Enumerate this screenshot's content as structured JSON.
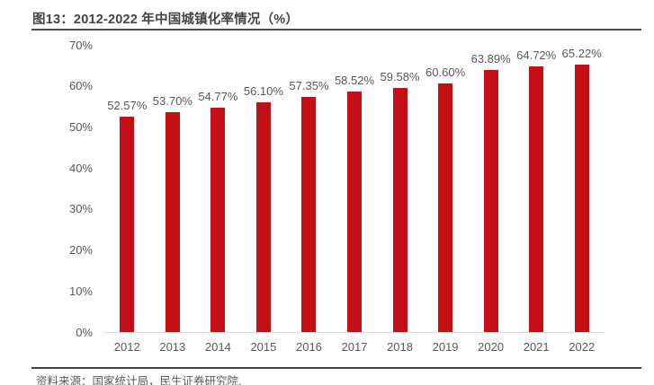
{
  "figure": {
    "title": "图13：2012-2022 年中国城镇化率情况（%）",
    "source": "资料来源：国家统计局，民生证券研究院."
  },
  "chart_data": {
    "type": "bar",
    "title": "图13：2012-2022 年中国城镇化率情况（%）",
    "categories": [
      "2012",
      "2013",
      "2014",
      "2015",
      "2016",
      "2017",
      "2018",
      "2019",
      "2020",
      "2021",
      "2022"
    ],
    "values": [
      52.57,
      53.7,
      54.77,
      56.1,
      57.35,
      58.52,
      59.58,
      60.6,
      63.89,
      64.72,
      65.22
    ],
    "data_labels": [
      "52.57%",
      "53.70%",
      "54.77%",
      "56.10%",
      "57.35%",
      "58.52%",
      "59.58%",
      "60.60%",
      "63.89%",
      "64.72%",
      "65.22%"
    ],
    "xlabel": "",
    "ylabel": "",
    "ylim": [
      0,
      70
    ],
    "ytick_values": [
      0,
      10,
      20,
      30,
      40,
      50,
      60,
      70
    ],
    "ytick_labels": [
      "0%",
      "10%",
      "20%",
      "30%",
      "40%",
      "50%",
      "60%",
      "70%"
    ],
    "grid": false,
    "legend": "none",
    "bar_color": "#C40F16",
    "text_color": "#595959",
    "axis_line_color": "#D9D9D9"
  },
  "colors": {
    "title_text": "#444444",
    "divider": "#4A4A4A",
    "footer_divider": "#404040",
    "bar": "#C40F16",
    "label": "#595959"
  }
}
